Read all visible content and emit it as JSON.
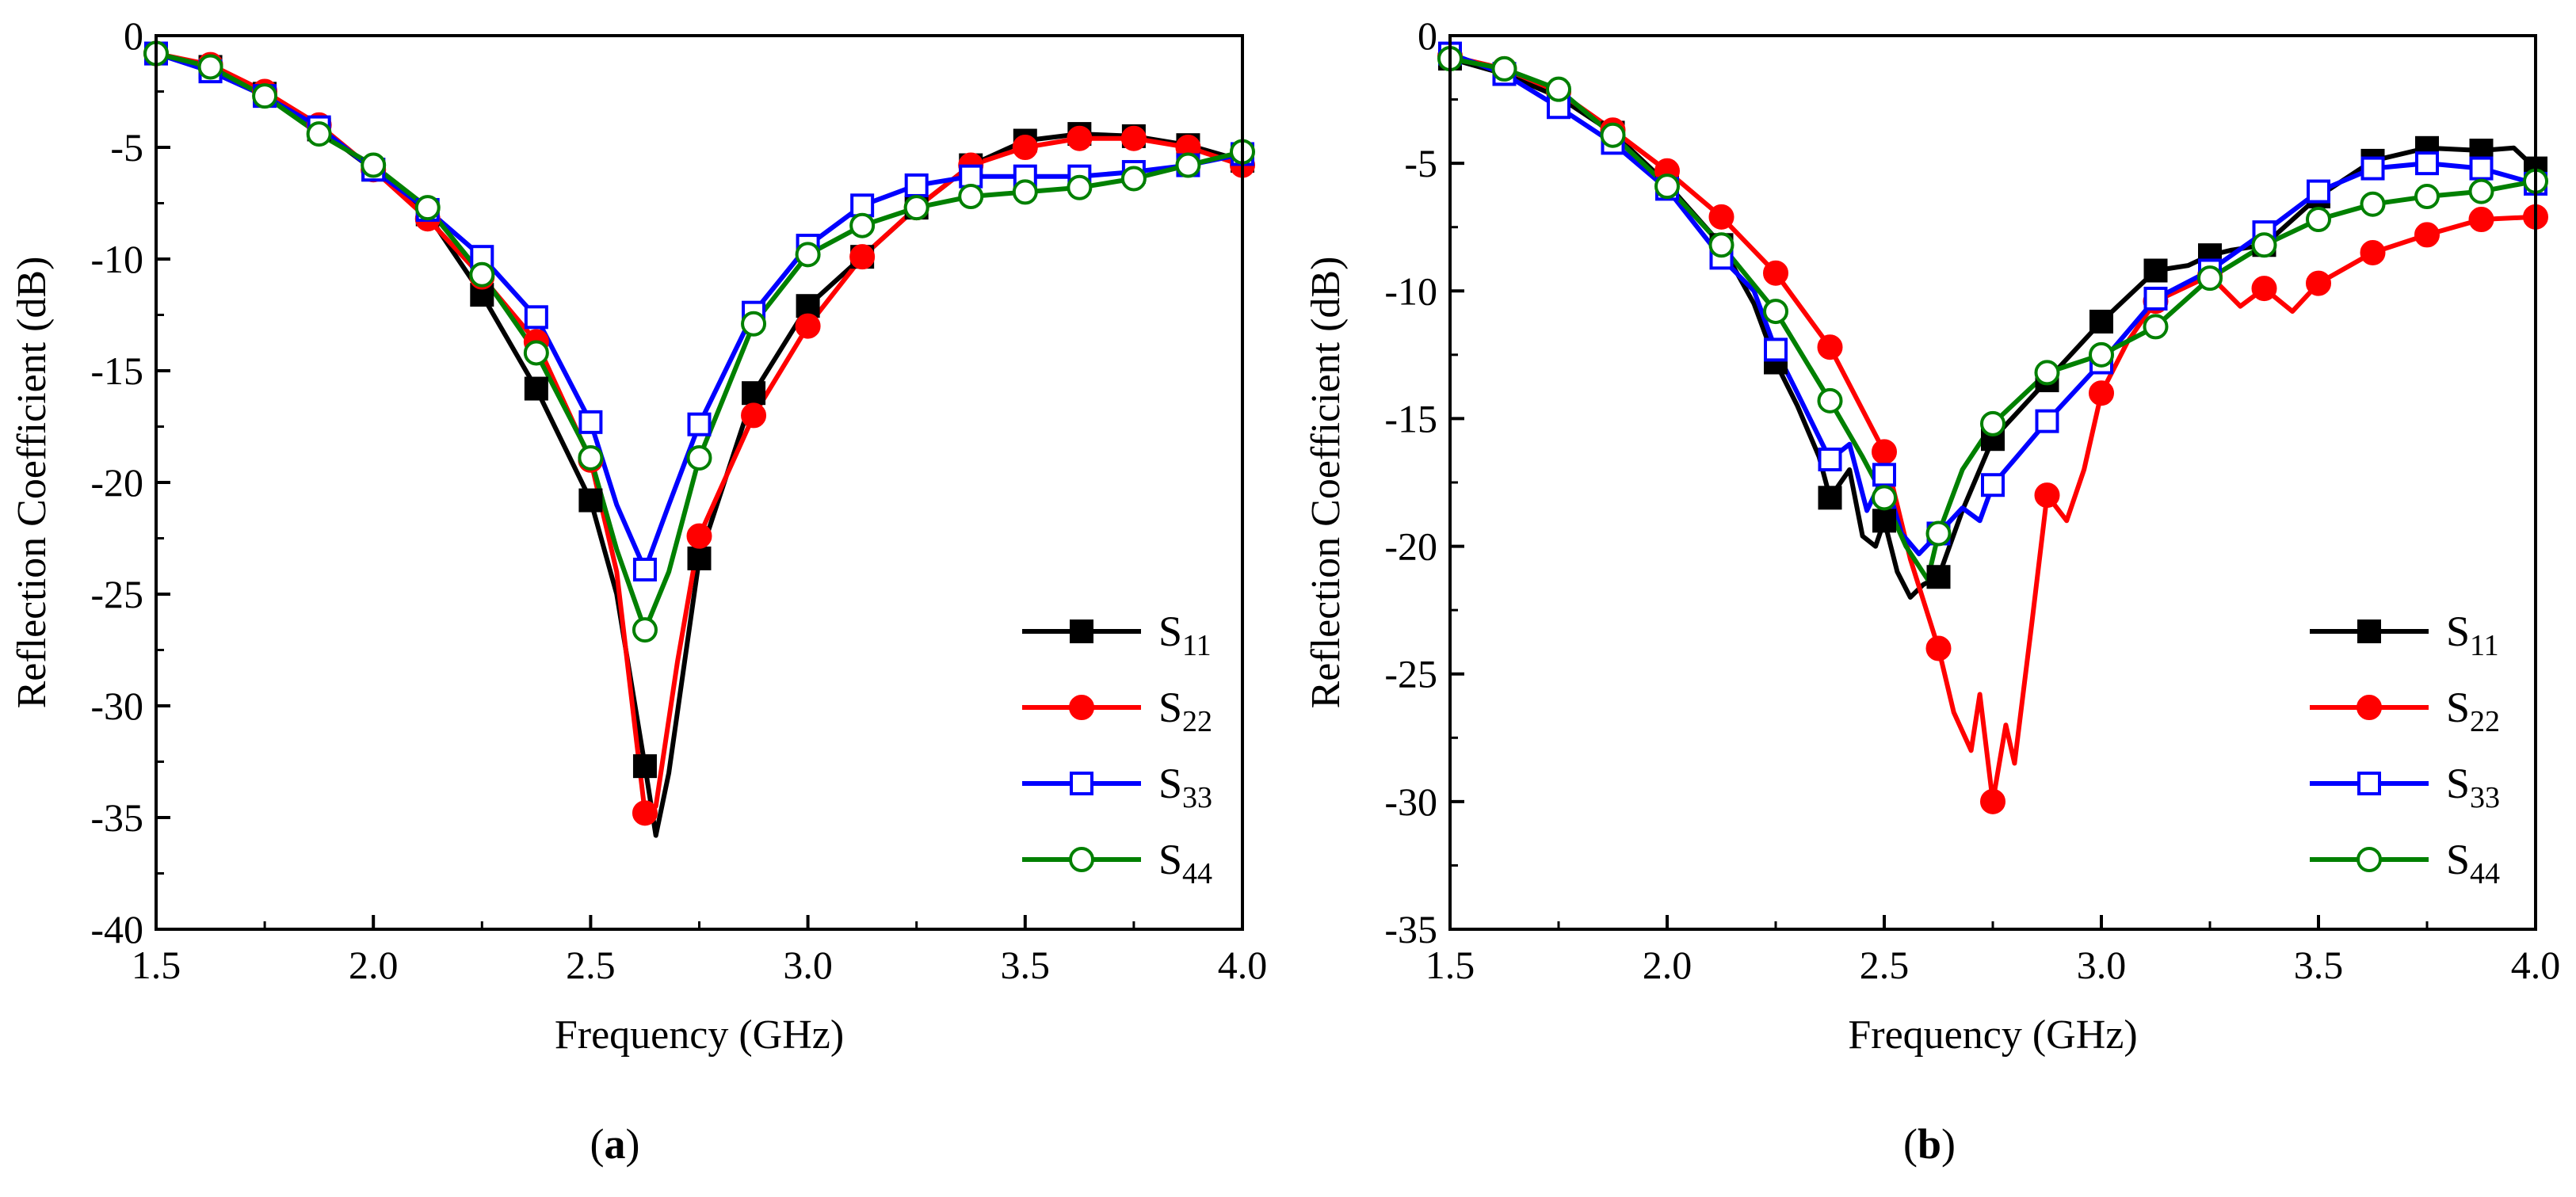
{
  "chart_data": [
    {
      "type": "line",
      "panel_label": "a",
      "xlabel": "Frequency (GHz)",
      "ylabel": "Reflection Coefficient (dB)",
      "xlim": [
        1.5,
        4.0
      ],
      "ylim": [
        -40,
        0
      ],
      "xticks": [
        "1.5",
        "2.0",
        "2.5",
        "3.0",
        "3.5",
        "4.0"
      ],
      "yticks": [
        "0",
        "-5",
        "-10",
        "-15",
        "-20",
        "-25",
        "-30",
        "-35",
        "-40"
      ],
      "grid": false,
      "legend_position": "bottom-right",
      "series": [
        {
          "name": "S",
          "sub": "11",
          "color": "#000000",
          "marker": "square",
          "filled": true,
          "x": [
            1.5,
            1.625,
            1.75,
            1.875,
            2.0,
            2.125,
            2.25,
            2.375,
            2.5,
            2.56,
            2.625,
            2.65,
            2.68,
            2.75,
            2.875,
            3.0,
            3.125,
            3.25,
            3.375,
            3.5,
            3.625,
            3.75,
            3.875,
            4.0
          ],
          "y": [
            -0.8,
            -1.4,
            -2.6,
            -4.2,
            -6.0,
            -8.0,
            -11.6,
            -15.8,
            -20.8,
            -25.0,
            -32.7,
            -35.8,
            -33.0,
            -23.4,
            -16.0,
            -12.1,
            -9.9,
            -7.7,
            -5.8,
            -4.7,
            -4.4,
            -4.5,
            -4.9,
            -5.6
          ],
          "marker_x": [
            1.5,
            1.625,
            1.75,
            1.875,
            2.0,
            2.125,
            2.25,
            2.375,
            2.5,
            2.625,
            2.75,
            2.875,
            3.0,
            3.125,
            3.25,
            3.375,
            3.5,
            3.625,
            3.75,
            3.875,
            4.0
          ]
        },
        {
          "name": "S",
          "sub": "22",
          "color": "#ff0000",
          "marker": "circle",
          "filled": true,
          "x": [
            1.5,
            1.625,
            1.75,
            1.875,
            2.0,
            2.125,
            2.25,
            2.375,
            2.5,
            2.56,
            2.625,
            2.65,
            2.7,
            2.75,
            2.875,
            3.0,
            3.125,
            3.25,
            3.375,
            3.5,
            3.625,
            3.75,
            3.875,
            4.0
          ],
          "y": [
            -0.8,
            -1.3,
            -2.5,
            -4.0,
            -6.0,
            -8.2,
            -10.8,
            -13.7,
            -19.0,
            -24.0,
            -34.8,
            -34.5,
            -28.0,
            -22.4,
            -17.0,
            -13.0,
            -9.9,
            -7.7,
            -5.8,
            -5.0,
            -4.6,
            -4.6,
            -5.0,
            -5.8
          ],
          "marker_x": [
            1.5,
            1.625,
            1.75,
            1.875,
            2.0,
            2.125,
            2.25,
            2.375,
            2.5,
            2.625,
            2.75,
            2.875,
            3.0,
            3.125,
            3.25,
            3.375,
            3.5,
            3.625,
            3.75,
            3.875,
            4.0
          ]
        },
        {
          "name": "S",
          "sub": "33",
          "color": "#0000ff",
          "marker": "square",
          "filled": false,
          "x": [
            1.5,
            1.625,
            1.75,
            1.875,
            2.0,
            2.125,
            2.25,
            2.375,
            2.5,
            2.56,
            2.625,
            2.68,
            2.75,
            2.875,
            3.0,
            3.125,
            3.25,
            3.375,
            3.5,
            3.625,
            3.75,
            3.875,
            4.0
          ],
          "y": [
            -0.8,
            -1.6,
            -2.7,
            -4.1,
            -6.0,
            -7.8,
            -9.9,
            -12.6,
            -17.3,
            -21.0,
            -23.9,
            -21.0,
            -17.4,
            -12.4,
            -9.4,
            -7.6,
            -6.7,
            -6.3,
            -6.3,
            -6.3,
            -6.1,
            -5.8,
            -5.3
          ],
          "marker_x": [
            1.5,
            1.625,
            1.75,
            1.875,
            2.0,
            2.125,
            2.25,
            2.375,
            2.5,
            2.625,
            2.75,
            2.875,
            3.0,
            3.125,
            3.25,
            3.375,
            3.5,
            3.625,
            3.75,
            3.875,
            4.0
          ]
        },
        {
          "name": "S",
          "sub": "44",
          "color": "#008000",
          "marker": "circle",
          "filled": false,
          "x": [
            1.5,
            1.625,
            1.75,
            1.875,
            2.0,
            2.125,
            2.25,
            2.375,
            2.5,
            2.56,
            2.625,
            2.68,
            2.75,
            2.875,
            3.0,
            3.125,
            3.25,
            3.375,
            3.5,
            3.625,
            3.75,
            3.875,
            4.0
          ],
          "y": [
            -0.8,
            -1.4,
            -2.7,
            -4.4,
            -5.8,
            -7.7,
            -10.7,
            -14.2,
            -18.9,
            -23.0,
            -26.6,
            -24.0,
            -18.9,
            -12.9,
            -9.8,
            -8.5,
            -7.7,
            -7.2,
            -7.0,
            -6.8,
            -6.4,
            -5.8,
            -5.2
          ],
          "marker_x": [
            1.5,
            1.625,
            1.75,
            1.875,
            2.0,
            2.125,
            2.25,
            2.375,
            2.5,
            2.625,
            2.75,
            2.875,
            3.0,
            3.125,
            3.25,
            3.375,
            3.5,
            3.625,
            3.75,
            3.875,
            4.0
          ]
        }
      ]
    },
    {
      "type": "line",
      "panel_label": "b",
      "xlabel": "Frequency (GHz)",
      "ylabel": "Reflection Coefficient (dB)",
      "xlim": [
        1.5,
        4.0
      ],
      "ylim": [
        -35,
        0
      ],
      "xticks": [
        "1.5",
        "2.0",
        "2.5",
        "3.0",
        "3.5",
        "4.0"
      ],
      "yticks": [
        "0",
        "-5",
        "-10",
        "-15",
        "-20",
        "-25",
        "-30",
        "-35"
      ],
      "grid": false,
      "legend_position": "bottom-right",
      "series": [
        {
          "name": "S",
          "sub": "11",
          "color": "#000000",
          "marker": "square",
          "filled": true,
          "x": [
            1.5,
            1.625,
            1.75,
            1.875,
            2.0,
            2.125,
            2.2,
            2.25,
            2.3,
            2.35,
            2.375,
            2.42,
            2.45,
            2.48,
            2.5,
            2.53,
            2.56,
            2.59,
            2.625,
            2.68,
            2.75,
            2.875,
            3.0,
            3.125,
            3.2,
            3.25,
            3.3,
            3.375,
            3.5,
            3.625,
            3.75,
            3.875,
            3.95,
            4.0
          ],
          "y": [
            -0.9,
            -1.5,
            -2.4,
            -3.8,
            -5.8,
            -8.2,
            -10.5,
            -12.8,
            -14.5,
            -16.5,
            -18.1,
            -17.0,
            -19.6,
            -20.0,
            -19.0,
            -21.0,
            -22.0,
            -21.5,
            -21.2,
            -18.6,
            -15.8,
            -13.5,
            -11.2,
            -9.2,
            -9.0,
            -8.6,
            -8.4,
            -8.2,
            -6.3,
            -4.9,
            -4.4,
            -4.5,
            -4.4,
            -5.2
          ],
          "marker_x": [
            1.5,
            1.625,
            1.75,
            1.875,
            2.0,
            2.125,
            2.25,
            2.375,
            2.5,
            2.625,
            2.75,
            2.875,
            3.0,
            3.125,
            3.25,
            3.375,
            3.5,
            3.625,
            3.75,
            3.875,
            4.0
          ]
        },
        {
          "name": "S",
          "sub": "22",
          "color": "#ff0000",
          "marker": "circle",
          "filled": true,
          "x": [
            1.5,
            1.625,
            1.75,
            1.875,
            2.0,
            2.125,
            2.25,
            2.375,
            2.5,
            2.56,
            2.625,
            2.66,
            2.7,
            2.72,
            2.75,
            2.78,
            2.8,
            2.84,
            2.875,
            2.92,
            2.96,
            3.0,
            3.06,
            3.125,
            3.25,
            3.32,
            3.375,
            3.44,
            3.5,
            3.625,
            3.75,
            3.875,
            4.0
          ],
          "y": [
            -0.8,
            -1.3,
            -2.2,
            -3.7,
            -5.3,
            -7.1,
            -9.3,
            -12.2,
            -16.3,
            -20.5,
            -24.0,
            -26.5,
            -28.0,
            -25.8,
            -30.0,
            -27.0,
            -28.5,
            -23.0,
            -18.0,
            -19.0,
            -17.0,
            -14.0,
            -12.0,
            -10.4,
            -9.4,
            -10.6,
            -9.9,
            -10.8,
            -9.7,
            -8.5,
            -7.8,
            -7.2,
            -7.1
          ],
          "marker_x": [
            1.5,
            1.625,
            1.75,
            1.875,
            2.0,
            2.125,
            2.25,
            2.375,
            2.5,
            2.625,
            2.75,
            2.875,
            3.0,
            3.125,
            3.25,
            3.375,
            3.5,
            3.625,
            3.75,
            3.875,
            4.0
          ]
        },
        {
          "name": "S",
          "sub": "33",
          "color": "#0000ff",
          "marker": "square",
          "filled": false,
          "x": [
            1.5,
            1.625,
            1.75,
            1.875,
            2.0,
            2.125,
            2.2,
            2.25,
            2.3,
            2.375,
            2.42,
            2.46,
            2.5,
            2.54,
            2.58,
            2.625,
            2.68,
            2.72,
            2.75,
            2.875,
            3.0,
            3.125,
            3.25,
            3.375,
            3.5,
            3.625,
            3.75,
            3.875,
            4.0
          ],
          "y": [
            -0.7,
            -1.5,
            -2.8,
            -4.2,
            -6.0,
            -8.7,
            -10.0,
            -12.3,
            -14.0,
            -16.6,
            -16.0,
            -18.6,
            -17.2,
            -19.5,
            -20.3,
            -19.5,
            -18.5,
            -19.0,
            -17.6,
            -15.1,
            -12.8,
            -10.3,
            -9.2,
            -7.7,
            -6.1,
            -5.2,
            -5.0,
            -5.2,
            -5.8
          ],
          "marker_x": [
            1.5,
            1.625,
            1.75,
            1.875,
            2.0,
            2.125,
            2.25,
            2.375,
            2.5,
            2.625,
            2.75,
            2.875,
            3.0,
            3.125,
            3.25,
            3.375,
            3.5,
            3.625,
            3.75,
            3.875,
            4.0
          ]
        },
        {
          "name": "S",
          "sub": "44",
          "color": "#008000",
          "marker": "circle",
          "filled": false,
          "x": [
            1.5,
            1.625,
            1.75,
            1.875,
            2.0,
            2.125,
            2.25,
            2.375,
            2.45,
            2.5,
            2.55,
            2.6,
            2.625,
            2.68,
            2.75,
            2.875,
            3.0,
            3.125,
            3.25,
            3.375,
            3.5,
            3.625,
            3.75,
            3.875,
            4.0
          ],
          "y": [
            -0.9,
            -1.3,
            -2.1,
            -3.9,
            -5.9,
            -8.2,
            -10.8,
            -14.3,
            -16.5,
            -18.1,
            -20.0,
            -21.3,
            -19.5,
            -17.0,
            -15.2,
            -13.2,
            -12.5,
            -11.4,
            -9.5,
            -8.2,
            -7.2,
            -6.6,
            -6.3,
            -6.1,
            -5.7
          ],
          "marker_x": [
            1.5,
            1.625,
            1.75,
            1.875,
            2.0,
            2.125,
            2.25,
            2.375,
            2.5,
            2.625,
            2.75,
            2.875,
            3.0,
            3.125,
            3.25,
            3.375,
            3.5,
            3.625,
            3.75,
            3.875,
            4.0
          ]
        }
      ]
    }
  ]
}
